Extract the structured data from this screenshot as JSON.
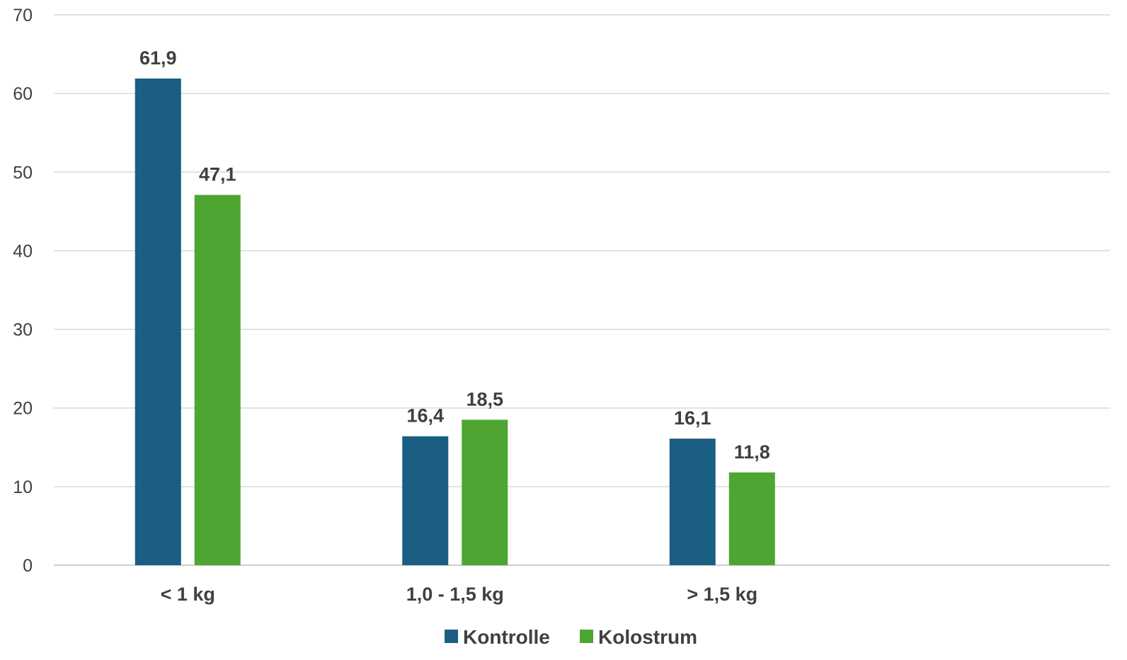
{
  "chart_data": {
    "type": "bar",
    "categories": [
      "< 1 kg",
      "1,0 - 1,5 kg",
      "> 1,5 kg"
    ],
    "series": [
      {
        "name": "Kontrolle",
        "color": "#1a5e82",
        "values": [
          61.9,
          16.4,
          16.1
        ],
        "labels": [
          "61,9",
          "16,4",
          "16,1"
        ]
      },
      {
        "name": "Kolostrum",
        "color": "#4ea532",
        "values": [
          47.1,
          18.5,
          11.8
        ],
        "labels": [
          "47,1",
          "18,5",
          "11,8"
        ]
      }
    ],
    "ylim": [
      0,
      70
    ],
    "yticks": [
      0,
      10,
      20,
      30,
      40,
      50,
      60,
      70
    ],
    "grid": true,
    "legend_position": "bottom",
    "title": "",
    "xlabel": "",
    "ylabel": ""
  }
}
